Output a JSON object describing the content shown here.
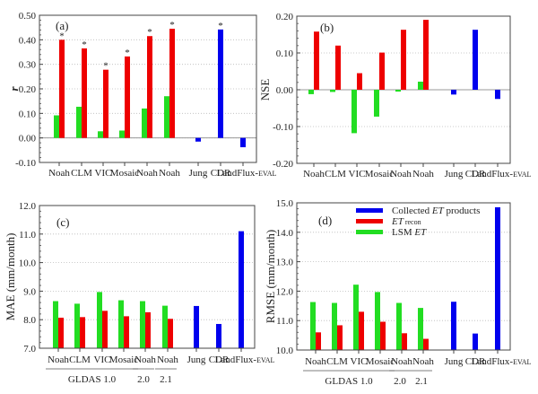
{
  "figure": {
    "legend": {
      "placement": "panel-d-top",
      "entries": [
        {
          "key": "collected",
          "label_parts": [
            "Collected ",
            "ET",
            " products"
          ],
          "color": "#0000ee"
        },
        {
          "key": "recon",
          "label_parts": [
            "ET",
            " recon"
          ],
          "color": "#ee0000"
        },
        {
          "key": "lsm",
          "label_parts": [
            "LSM ",
            "ET"
          ],
          "color": "#22dd22"
        }
      ]
    },
    "group_labels": [
      {
        "label": "GLDAS 1.0",
        "span": [
          0,
          3
        ]
      },
      {
        "label": "2.0",
        "span": [
          4,
          4
        ]
      },
      {
        "label": "2.1",
        "span": [
          5,
          5
        ]
      }
    ]
  },
  "chart_data": [
    {
      "type": "bar",
      "panel_label": "(a)",
      "ylabel": "r",
      "ylabel_italic": true,
      "ylim": [
        -0.1,
        0.5
      ],
      "yticks": [
        -0.1,
        0.0,
        0.1,
        0.2,
        0.3,
        0.4,
        0.5
      ],
      "ytick_labels": [
        "-0.10",
        "0.00",
        "0.10",
        "0.20",
        "0.30",
        "0.40",
        "0.50"
      ],
      "grid": "dotted-horizontal",
      "show_group_labels": false,
      "categories": [
        "Noah",
        "CLM",
        "VIC",
        "Mosaic",
        "Noah",
        "Noah",
        "Jung",
        "CDR",
        "LandFlux-EVAL"
      ],
      "series": [
        {
          "name": "LSM ET",
          "color": "#22dd22",
          "values": [
            0.092,
            0.127,
            0.027,
            0.03,
            0.12,
            0.17,
            null,
            null,
            null
          ]
        },
        {
          "name": "ET recon",
          "color": "#ee0000",
          "values": [
            0.4,
            0.365,
            0.278,
            0.332,
            0.415,
            0.445,
            null,
            null,
            null
          ]
        },
        {
          "name": "Collected ET products",
          "color": "#0000ee",
          "values": [
            null,
            null,
            null,
            null,
            null,
            null,
            -0.015,
            0.442,
            -0.038
          ]
        }
      ],
      "significance_marker": "*",
      "significant": {
        "ET recon": [
          0,
          1,
          2,
          3,
          4,
          5
        ],
        "Collected ET products": [
          7
        ]
      }
    },
    {
      "type": "bar",
      "panel_label": "(b)",
      "ylabel": "NSE",
      "ylabel_italic": false,
      "ylim": [
        -0.2,
        0.2
      ],
      "yticks": [
        -0.2,
        -0.1,
        0.0,
        0.1,
        0.2
      ],
      "ytick_labels": [
        "-0.20",
        "-0.10",
        "0.00",
        "0.10",
        "0.20"
      ],
      "grid": "dotted-horizontal",
      "show_group_labels": false,
      "categories": [
        "Noah",
        "CLM",
        "VIC",
        "Mosaic",
        "Noah",
        "Noah",
        "Jung",
        "CDR",
        "LandFlux-EVAL"
      ],
      "series": [
        {
          "name": "LSM ET",
          "color": "#22dd22",
          "values": [
            -0.012,
            -0.006,
            -0.118,
            -0.073,
            -0.005,
            0.022,
            null,
            null,
            null
          ]
        },
        {
          "name": "ET recon",
          "color": "#ee0000",
          "values": [
            0.158,
            0.12,
            0.045,
            0.101,
            0.163,
            0.19,
            null,
            null,
            null
          ]
        },
        {
          "name": "Collected ET products",
          "color": "#0000ee",
          "values": [
            null,
            null,
            null,
            null,
            null,
            null,
            -0.013,
            0.163,
            -0.025
          ]
        }
      ]
    },
    {
      "type": "bar",
      "panel_label": "(c)",
      "ylabel": "MAE  (mm/month)",
      "ylabel_italic": false,
      "ylim": [
        7.0,
        12.0
      ],
      "yticks": [
        7.0,
        8.0,
        9.0,
        10.0,
        11.0,
        12.0
      ],
      "ytick_labels": [
        "7.0",
        "8.0",
        "9.0",
        "10.0",
        "11.0",
        "12.0"
      ],
      "grid": "dotted-horizontal",
      "show_group_labels": true,
      "categories": [
        "Noah",
        "CLM",
        "VIC",
        "Mosaic",
        "Noah",
        "Noah",
        "Jung",
        "CDR",
        "LandFlux-EVAL"
      ],
      "series": [
        {
          "name": "LSM ET",
          "color": "#22dd22",
          "values": [
            8.65,
            8.56,
            8.97,
            8.68,
            8.65,
            8.49,
            null,
            null,
            null
          ]
        },
        {
          "name": "ET recon",
          "color": "#ee0000",
          "values": [
            8.07,
            8.09,
            8.31,
            8.12,
            8.26,
            8.03,
            null,
            null,
            null
          ]
        },
        {
          "name": "Collected ET products",
          "color": "#0000ee",
          "values": [
            null,
            null,
            null,
            null,
            null,
            null,
            8.48,
            7.85,
            11.1
          ]
        }
      ]
    },
    {
      "type": "bar",
      "panel_label": "(d)",
      "ylabel": "RMSE  (mm/month)",
      "ylabel_italic": false,
      "ylim": [
        10.0,
        15.0
      ],
      "yticks": [
        10.0,
        11.0,
        12.0,
        13.0,
        14.0,
        15.0
      ],
      "ytick_labels": [
        "10.0",
        "11.0",
        "12.0",
        "13.0",
        "14.0",
        "15.0"
      ],
      "grid": "dotted-horizontal",
      "show_group_labels": true,
      "show_legend": true,
      "categories": [
        "Noah",
        "CLM",
        "VIC",
        "Mosaic",
        "Noah",
        "Noah",
        "Jung",
        "CDR",
        "LandFlux-EVAL"
      ],
      "series": [
        {
          "name": "LSM ET",
          "color": "#22dd22",
          "values": [
            11.63,
            11.6,
            12.22,
            11.97,
            11.6,
            11.43,
            null,
            null,
            null
          ]
        },
        {
          "name": "ET recon",
          "color": "#ee0000",
          "values": [
            10.6,
            10.84,
            11.3,
            10.96,
            10.57,
            10.38,
            null,
            null,
            null
          ]
        },
        {
          "name": "Collected ET products",
          "color": "#0000ee",
          "values": [
            null,
            null,
            null,
            null,
            null,
            null,
            11.64,
            10.56,
            14.85
          ]
        }
      ]
    }
  ]
}
